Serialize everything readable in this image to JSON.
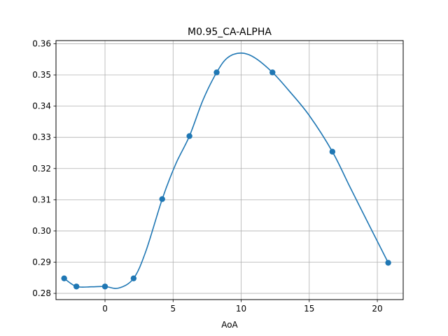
{
  "chart_data": {
    "type": "scatter",
    "title": "M0.95_CA-ALPHA",
    "xlabel": "AoA",
    "ylabel": "",
    "xlim": [
      -3.6,
      21.9
    ],
    "ylim": [
      0.278,
      0.361
    ],
    "x_ticks": [
      0,
      5,
      10,
      15,
      20
    ],
    "x_tick_labels": [
      "0",
      "5",
      "10",
      "15",
      "20"
    ],
    "y_ticks": [
      0.28,
      0.29,
      0.3,
      0.31,
      0.32,
      0.33,
      0.34,
      0.35,
      0.36
    ],
    "y_tick_labels": [
      "0.28",
      "0.29",
      "0.30",
      "0.31",
      "0.32",
      "0.33",
      "0.34",
      "0.35",
      "0.36"
    ],
    "grid": true,
    "legend": "none",
    "series_color": "#1f77b4",
    "points": {
      "x": [
        -3.0,
        -2.1,
        0.0,
        2.1,
        4.2,
        6.2,
        8.2,
        12.3,
        16.7,
        20.8
      ],
      "y": [
        0.2848,
        0.2822,
        0.2822,
        0.2848,
        0.3102,
        0.3304,
        0.3508,
        0.3508,
        0.3254,
        0.2898
      ]
    },
    "curve": {
      "x": [
        -3.0,
        -2.1,
        -1.0,
        0.0,
        1.0,
        2.1,
        3.0,
        4.2,
        5.2,
        6.2,
        7.2,
        8.2,
        9.0,
        10.0,
        11.0,
        12.3,
        13.5,
        15.0,
        16.7,
        18.0,
        19.5,
        20.8
      ],
      "y": [
        0.2848,
        0.2822,
        0.2821,
        0.2822,
        0.2817,
        0.2848,
        0.2935,
        0.3102,
        0.3215,
        0.3304,
        0.342,
        0.3508,
        0.3555,
        0.357,
        0.3555,
        0.3508,
        0.345,
        0.337,
        0.3254,
        0.314,
        0.301,
        0.2898
      ]
    }
  }
}
